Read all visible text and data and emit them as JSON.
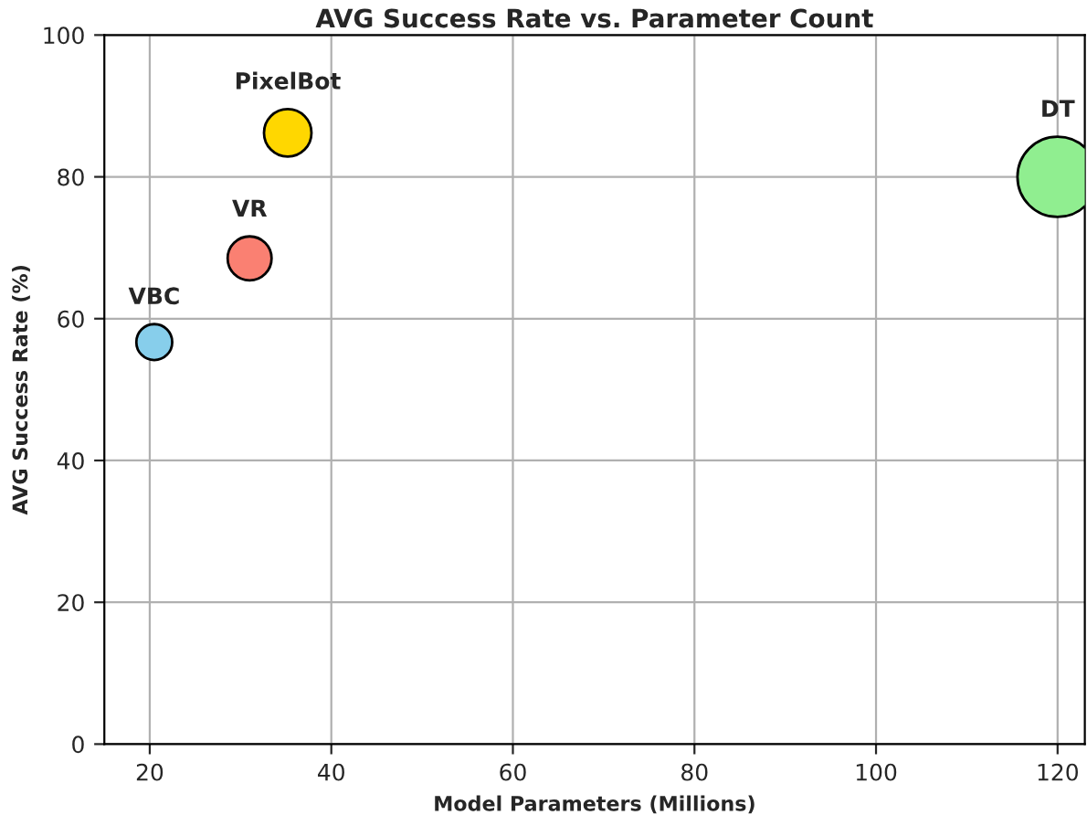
{
  "chart_data": {
    "type": "bubble",
    "title": "AVG Success Rate vs. Parameter Count",
    "xlabel": "Model Parameters (Millions)",
    "ylabel": "AVG Success Rate (%)",
    "series": [
      {
        "name": "VBC",
        "color": "#87ceeb",
        "x": [
          20.5
        ],
        "values": [
          56.7
        ],
        "sizes": [
          0.2
        ]
      },
      {
        "name": "VR",
        "color": "#fa8072",
        "x": [
          31
        ],
        "values": [
          68.5
        ],
        "sizes": [
          0.3
        ]
      },
      {
        "name": "PixelBot",
        "color": "#ffd700",
        "x": [
          35.2
        ],
        "values": [
          86.2
        ],
        "sizes": [
          0.35
        ]
      },
      {
        "name": "DT",
        "color": "#90ee90",
        "x": [
          120
        ],
        "values": [
          80
        ],
        "sizes": [
          1
        ]
      }
    ],
    "xlim": [
      15,
      123
    ],
    "xticks": [
      20,
      40,
      60,
      80,
      100,
      120
    ],
    "ylim": [
      0,
      100
    ],
    "yticks": [
      0,
      20,
      40,
      60,
      80,
      100
    ],
    "grid": true,
    "legend": false
  }
}
